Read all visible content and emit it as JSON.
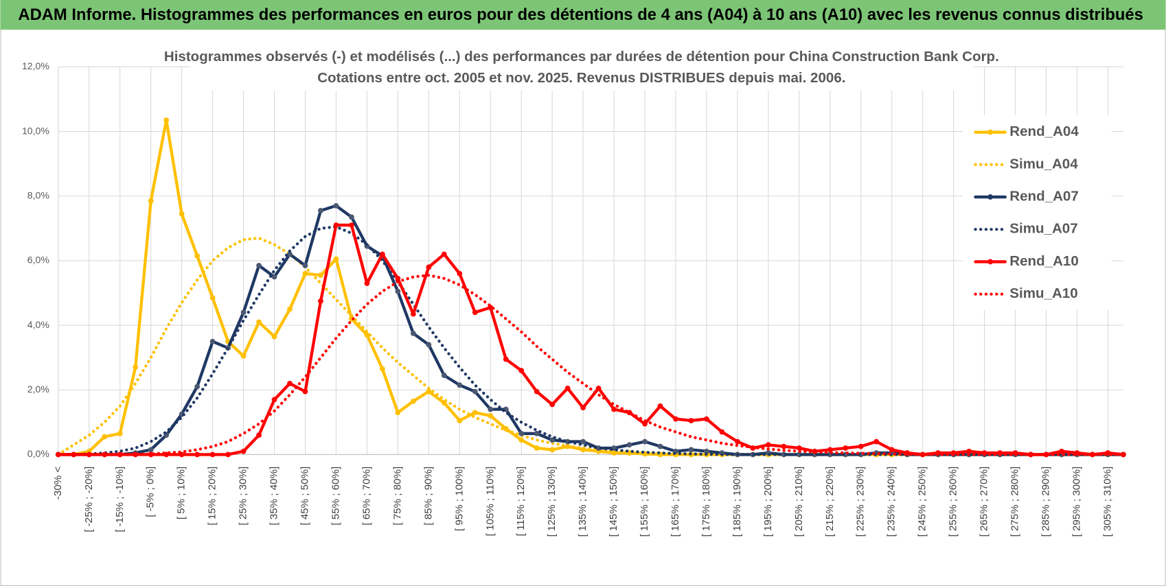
{
  "header": {
    "title": "ADAM Informe. Histogrammes des performances en euros pour des détentions de 4 ans (A04) à 10 ans (A10) avec les revenus connus distribués"
  },
  "chart_data": {
    "type": "line",
    "title": "Histogrammes observés (-) et modélisés (...) des performances par durées de détention pour China Construction Bank Corp.",
    "subtitle": "Cotations entre oct. 2005 et nov. 2025.  Revenus DISTRIBUES depuis mai. 2006.",
    "categories": [
      "-30% <",
      null,
      "[ -25% ; -20%]",
      null,
      "[ -15% ; -10%]",
      null,
      "[ -5% ; 0%]",
      null,
      "[ 5% ; 10%]",
      null,
      "[ 15% ; 20%]",
      null,
      "[ 25% ; 30%]",
      null,
      "[ 35% ; 40%]",
      null,
      "[ 45% ; 50%]",
      null,
      "[ 55% ; 60%]",
      null,
      "[ 65% ; 70%]",
      null,
      "[ 75% ; 80%]",
      null,
      "[ 85% ; 90%]",
      null,
      "[ 95% ; 100%]",
      null,
      "[ 105% ; 110%]",
      null,
      "[ 115% ; 120%]",
      null,
      "[ 125% ; 130%]",
      null,
      "[ 135% ; 140%]",
      null,
      "[ 145% ; 150%]",
      null,
      "[ 155% ; 160%]",
      null,
      "[ 165% ; 170%]",
      null,
      "[ 175% ; 180%]",
      null,
      "[ 185% ; 190%]",
      null,
      "[ 195% ; 200%]",
      null,
      "[ 205% ; 210%]",
      null,
      "[ 215% ; 220%]",
      null,
      "[ 225% ; 230%]",
      null,
      "[ 235% ; 240%]",
      null,
      "[ 245% ; 250%]",
      null,
      "[ 255% ; 260%]",
      null,
      "[ 265% ; 270%]",
      null,
      "[ 275% ; 280%]",
      null,
      "[ 285% ; 290%]",
      null,
      "[ 295% ; 300%]",
      null,
      "[ 305% ; 310%]",
      null
    ],
    "ylim": [
      0,
      12
    ],
    "yticks": [
      {
        "value": 0,
        "label": "0,0%"
      },
      {
        "value": 2,
        "label": "2,0%"
      },
      {
        "value": 4,
        "label": "4,0%"
      },
      {
        "value": 6,
        "label": "6,0%"
      },
      {
        "value": 8,
        "label": "8,0%"
      },
      {
        "value": 10,
        "label": "10,0%"
      },
      {
        "value": 12,
        "label": "12,0%"
      }
    ],
    "grid": true,
    "legend": "right",
    "series": [
      {
        "name": "Rend_A04",
        "color": "#ffc000",
        "dash": false,
        "markers": true,
        "values": [
          0,
          0,
          0.1,
          0.55,
          0.65,
          2.7,
          7.85,
          10.35,
          7.45,
          6.15,
          4.85,
          3.5,
          3.05,
          4.1,
          3.65,
          4.5,
          5.6,
          5.55,
          6.05,
          4.2,
          3.7,
          2.65,
          1.3,
          1.65,
          1.95,
          1.6,
          1.05,
          1.3,
          1.2,
          0.8,
          0.45,
          0.2,
          0.15,
          0.25,
          0.15,
          0.1,
          0.05,
          0.05,
          0.02,
          0,
          0,
          0,
          0,
          0,
          0,
          0,
          0,
          0,
          0,
          0,
          0,
          0,
          0,
          0,
          0,
          0,
          0,
          0,
          0,
          0,
          0,
          0,
          0,
          0,
          0,
          0,
          0,
          0,
          0,
          0
        ]
      },
      {
        "name": "Simu_A04",
        "color": "#ffc000",
        "dash": true,
        "markers": false,
        "values": [
          0,
          0.3,
          0.6,
          1.0,
          1.5,
          2.2,
          3.0,
          3.9,
          4.7,
          5.4,
          6.0,
          6.4,
          6.65,
          6.7,
          6.5,
          6.2,
          5.8,
          5.3,
          4.8,
          4.3,
          3.8,
          3.3,
          2.85,
          2.45,
          2.05,
          1.7,
          1.4,
          1.15,
          0.95,
          0.75,
          0.6,
          0.45,
          0.35,
          0.27,
          0.2,
          0.15,
          0.11,
          0.08,
          0.06,
          0.04,
          0.03,
          0.02,
          0.01,
          0,
          0,
          0,
          0,
          0,
          0,
          0,
          0,
          0,
          0,
          0,
          0,
          0,
          0,
          0,
          0,
          0,
          0,
          0,
          0,
          0,
          0,
          0,
          0,
          0,
          0,
          0
        ]
      },
      {
        "name": "Rend_A07",
        "color": "#1f3864",
        "dash": false,
        "markers": true,
        "values": [
          0,
          0,
          0,
          0,
          0,
          0.05,
          0.15,
          0.6,
          1.25,
          2.1,
          3.5,
          3.3,
          4.4,
          5.85,
          5.5,
          6.2,
          5.85,
          7.55,
          7.7,
          7.35,
          6.45,
          6.15,
          5.05,
          3.75,
          3.4,
          2.45,
          2.15,
          1.95,
          1.4,
          1.4,
          0.65,
          0.65,
          0.45,
          0.4,
          0.4,
          0.2,
          0.2,
          0.3,
          0.4,
          0.25,
          0.1,
          0.15,
          0.1,
          0.05,
          0,
          0,
          0.05,
          0,
          0,
          0,
          0,
          0,
          0,
          0.05,
          0.05,
          0,
          0,
          0,
          0,
          0,
          0,
          0,
          0,
          0,
          0,
          0,
          0,
          0,
          0,
          0
        ]
      },
      {
        "name": "Simu_A07",
        "color": "#1f3864",
        "dash": true,
        "markers": false,
        "values": [
          0,
          0,
          0.02,
          0.05,
          0.1,
          0.2,
          0.4,
          0.7,
          1.15,
          1.75,
          2.5,
          3.3,
          4.15,
          4.95,
          5.7,
          6.3,
          6.75,
          7.0,
          7.05,
          6.85,
          6.5,
          6.0,
          5.35,
          4.65,
          3.95,
          3.3,
          2.7,
          2.15,
          1.7,
          1.3,
          1.0,
          0.75,
          0.55,
          0.4,
          0.3,
          0.2,
          0.15,
          0.1,
          0.07,
          0.05,
          0.03,
          0.02,
          0.01,
          0,
          0,
          0,
          0,
          0,
          0,
          0,
          0,
          0,
          0,
          0,
          0,
          0,
          0,
          0,
          0,
          0,
          0,
          0,
          0,
          0,
          0,
          0,
          0,
          0,
          0,
          0
        ]
      },
      {
        "name": "Rend_A10",
        "color": "#ff0000",
        "dash": false,
        "markers": true,
        "values": [
          0,
          0,
          0,
          0,
          0,
          0,
          0,
          0,
          0,
          0,
          0,
          0,
          0.1,
          0.6,
          1.7,
          2.2,
          1.95,
          4.75,
          7.1,
          7.1,
          5.3,
          6.2,
          5.45,
          4.35,
          5.8,
          6.2,
          5.6,
          4.4,
          4.55,
          2.95,
          2.6,
          1.95,
          1.55,
          2.05,
          1.45,
          2.05,
          1.4,
          1.3,
          0.95,
          1.5,
          1.1,
          1.05,
          1.1,
          0.7,
          0.4,
          0.2,
          0.3,
          0.25,
          0.2,
          0.1,
          0.15,
          0.2,
          0.25,
          0.4,
          0.15,
          0.05,
          0,
          0.05,
          0.05,
          0.1,
          0.05,
          0.05,
          0.05,
          0,
          0,
          0.1,
          0.05,
          0,
          0.05,
          0
        ]
      },
      {
        "name": "Simu_A10",
        "color": "#ff0000",
        "dash": true,
        "markers": false,
        "values": [
          0,
          0,
          0,
          0,
          0,
          0,
          0.02,
          0.05,
          0.08,
          0.15,
          0.25,
          0.4,
          0.65,
          0.95,
          1.35,
          1.85,
          2.4,
          3.0,
          3.6,
          4.15,
          4.65,
          5.05,
          5.35,
          5.5,
          5.55,
          5.45,
          5.25,
          4.95,
          4.6,
          4.2,
          3.8,
          3.35,
          2.95,
          2.55,
          2.2,
          1.85,
          1.55,
          1.3,
          1.05,
          0.85,
          0.7,
          0.55,
          0.45,
          0.35,
          0.28,
          0.22,
          0.17,
          0.13,
          0.1,
          0.08,
          0.06,
          0.05,
          0.04,
          0.03,
          0.02,
          0.01,
          0,
          0,
          0,
          0,
          0,
          0,
          0,
          0,
          0,
          0,
          0,
          0,
          0,
          0
        ]
      }
    ]
  }
}
